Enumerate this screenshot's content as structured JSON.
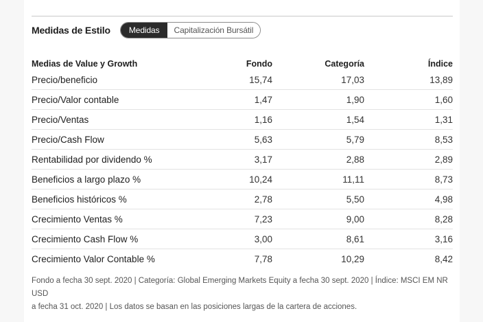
{
  "header": {
    "title": "Medidas de Estilo",
    "toggle": {
      "active_label": "Medidas",
      "inactive_label": "Capitalización Bursátil"
    }
  },
  "table": {
    "columns": [
      "Medias de Value y Growth",
      "Fondo",
      "Categoría",
      "Índice"
    ],
    "rows": [
      {
        "label": "Precio/beneficio",
        "fondo": "15,74",
        "categoria": "17,03",
        "indice": "13,89"
      },
      {
        "label": "Precio/Valor contable",
        "fondo": "1,47",
        "categoria": "1,90",
        "indice": "1,60"
      },
      {
        "label": "Precio/Ventas",
        "fondo": "1,16",
        "categoria": "1,54",
        "indice": "1,31"
      },
      {
        "label": "Precio/Cash Flow",
        "fondo": "5,63",
        "categoria": "5,79",
        "indice": "8,53"
      },
      {
        "label": "Rentabilidad por dividendo %",
        "fondo": "3,17",
        "categoria": "2,88",
        "indice": "2,89"
      },
      {
        "label": "Beneficios a largo plazo %",
        "fondo": "10,24",
        "categoria": "11,11",
        "indice": "8,73"
      },
      {
        "label": "Beneficios históricos %",
        "fondo": "2,78",
        "categoria": "5,50",
        "indice": "4,98"
      },
      {
        "label": "Crecimiento Ventas %",
        "fondo": "7,23",
        "categoria": "9,00",
        "indice": "8,28"
      },
      {
        "label": "Crecimiento Cash Flow %",
        "fondo": "3,00",
        "categoria": "8,61",
        "indice": "3,16"
      },
      {
        "label": "Crecimiento Valor Contable %",
        "fondo": "7,78",
        "categoria": "10,29",
        "indice": "8,42"
      }
    ]
  },
  "footnote": {
    "line1": "Fondo a fecha 30 sept. 2020 | Categoría: Global Emerging Markets Equity a fecha 30 sept. 2020 | Índice: MSCI EM NR USD",
    "line2": "a fecha 31 oct. 2020 | Los datos se basan en las posiciones largas de la cartera de acciones."
  },
  "colors": {
    "active_toggle_bg": "#2b2b2b",
    "divider": "#e3e3e3",
    "gutter": "#f7f7f7"
  }
}
